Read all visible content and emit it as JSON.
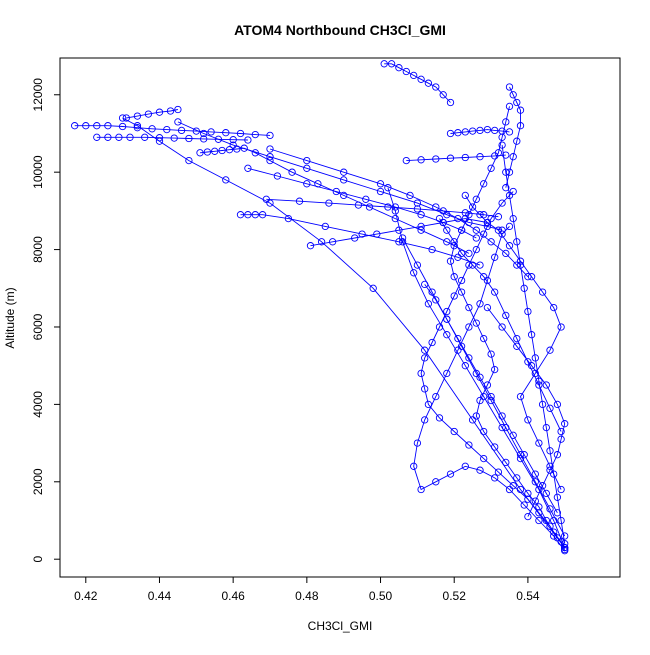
{
  "chart_data": {
    "type": "line",
    "title": "ATOM4 Northbound CH3Cl_GMI",
    "xlabel": "CH3Cl_GMI",
    "ylabel": "Altitude (m)",
    "xlim": [
      0.413,
      0.565
    ],
    "ylim": [
      -460,
      12950
    ],
    "x_ticks": [
      0.42,
      0.44,
      0.46,
      0.48,
      0.5,
      0.52,
      0.54
    ],
    "x_tick_labels": [
      "0.42",
      "0.44",
      "0.46",
      "0.48",
      "0.50",
      "0.52",
      "0.54"
    ],
    "y_ticks": [
      0,
      2000,
      4000,
      6000,
      8000,
      10000,
      12000
    ],
    "y_tick_labels": [
      "0",
      "2000",
      "4000",
      "6000",
      "8000",
      "10000",
      "12000"
    ],
    "marker": "open-circle",
    "line_style": "solid",
    "series_color": "#0000ff",
    "grid": false,
    "series": [
      {
        "x": [
          0.55,
          0.549,
          0.547,
          0.545,
          0.543,
          0.54,
          0.537,
          0.534,
          0.531,
          0.528,
          0.526,
          0.527,
          0.529,
          0.531,
          0.53,
          0.528,
          0.526,
          0.524,
          0.522,
          0.52,
          0.519,
          0.52,
          0.522,
          0.524,
          0.526,
          0.528,
          0.53,
          0.532,
          0.533,
          0.534,
          0.535
        ],
        "y": [
          250,
          450,
          700,
          1000,
          1350,
          1700,
          2100,
          2500,
          2900,
          3300,
          3700,
          4100,
          4500,
          4900,
          5300,
          5700,
          6100,
          6500,
          6900,
          7300,
          7700,
          8100,
          8500,
          8900,
          9300,
          9700,
          10100,
          10500,
          10900,
          11300,
          11700
        ]
      },
      {
        "x": [
          0.55,
          0.548,
          0.546,
          0.543,
          0.54,
          0.536,
          0.532,
          0.528,
          0.524,
          0.52,
          0.516,
          0.513,
          0.512,
          0.511,
          0.512,
          0.514,
          0.516,
          0.518,
          0.52,
          0.522,
          0.524,
          0.526,
          0.528,
          0.53,
          0.533,
          0.536
        ],
        "y": [
          300,
          550,
          850,
          1200,
          1550,
          1900,
          2250,
          2600,
          2950,
          3300,
          3650,
          4000,
          4400,
          4800,
          5200,
          5600,
          6000,
          6400,
          6800,
          7200,
          7600,
          8000,
          8400,
          8800,
          9200,
          9500
        ]
      },
      {
        "x": [
          0.55,
          0.547,
          0.543,
          0.539,
          0.535,
          0.531,
          0.527,
          0.523,
          0.519,
          0.515,
          0.511,
          0.509,
          0.51,
          0.512,
          0.515,
          0.518,
          0.521,
          0.524,
          0.527,
          0.529,
          0.531,
          0.533,
          0.535
        ],
        "y": [
          220,
          600,
          1000,
          1400,
          1800,
          2100,
          2300,
          2400,
          2200,
          2000,
          1800,
          2400,
          3000,
          3600,
          4200,
          4800,
          5400,
          6000,
          6600,
          7200,
          7800,
          8400,
          8600
        ]
      },
      {
        "x": [
          0.55,
          0.549,
          0.548,
          0.547,
          0.546,
          0.545,
          0.544,
          0.543,
          0.542,
          0.541,
          0.54,
          0.539,
          0.538,
          0.537,
          0.536,
          0.535,
          0.534,
          0.533
        ],
        "y": [
          400,
          1000,
          1600,
          2200,
          2800,
          3400,
          4000,
          4600,
          5200,
          5800,
          6400,
          7000,
          7600,
          8200,
          8800,
          9400,
          10000,
          10700
        ]
      },
      {
        "x": [
          0.549,
          0.546,
          0.543,
          0.54,
          0.538,
          0.542,
          0.546,
          0.549,
          0.547,
          0.544,
          0.541,
          0.538,
          0.535,
          0.532,
          0.529,
          0.527,
          0.525,
          0.523
        ],
        "y": [
          1800,
          2400,
          3000,
          3600,
          4200,
          4800,
          5400,
          6000,
          6500,
          6900,
          7300,
          7700,
          8100,
          8500,
          8700,
          8900,
          9100,
          9400
        ]
      },
      {
        "x": [
          0.55,
          0.547,
          0.543,
          0.538,
          0.533,
          0.528,
          0.523,
          0.518,
          0.513,
          0.509,
          0.506,
          0.504,
          0.502
        ],
        "y": [
          300,
          1000,
          1800,
          2600,
          3400,
          4200,
          5000,
          5800,
          6600,
          7400,
          8200,
          9000,
          9600
        ]
      },
      {
        "x": [
          0.548,
          0.545,
          0.542,
          0.539,
          0.536,
          0.533,
          0.53,
          0.527,
          0.524,
          0.521,
          0.518,
          0.515,
          0.512
        ],
        "y": [
          1200,
          1700,
          2200,
          2700,
          3200,
          3700,
          4200,
          4700,
          5200,
          5700,
          6200,
          6700,
          7100
        ]
      },
      {
        "x": [
          0.55,
          0.546,
          0.542,
          0.538,
          0.534,
          0.53,
          0.526,
          0.522,
          0.518,
          0.514,
          0.51,
          0.506
        ],
        "y": [
          600,
          1300,
          2000,
          2700,
          3400,
          4100,
          4800,
          5500,
          6200,
          6900,
          7600,
          8300
        ]
      },
      {
        "x": [
          0.549,
          0.546,
          0.543,
          0.54,
          0.537,
          0.534,
          0.531,
          0.528,
          0.525,
          0.522,
          0.52,
          0.518,
          0.516
        ],
        "y": [
          3300,
          3900,
          4500,
          5100,
          5700,
          6300,
          6900,
          7300,
          7600,
          7900,
          8200,
          8500,
          8800
        ]
      },
      {
        "x": [
          0.54,
          0.542,
          0.544,
          0.546,
          0.548,
          0.549,
          0.55,
          0.548,
          0.545,
          0.541,
          0.537,
          0.533,
          0.529
        ],
        "y": [
          1100,
          1500,
          1900,
          2300,
          2700,
          3100,
          3500,
          4000,
          4500,
          5000,
          5500,
          6000,
          6500
        ]
      },
      {
        "x": [
          0.55,
          0.538,
          0.525,
          0.512,
          0.498,
          0.484,
          0.47,
          0.458,
          0.448,
          0.44,
          0.434,
          0.43
        ],
        "y": [
          300,
          1800,
          3600,
          5400,
          7000,
          8200,
          9200,
          9800,
          10300,
          10800,
          11200,
          11400
        ]
      },
      {
        "x": [
          0.431,
          0.434,
          0.437,
          0.44,
          0.443,
          0.445
        ],
        "y": [
          11400,
          11450,
          11500,
          11550,
          11580,
          11620
        ]
      },
      {
        "x": [
          0.445,
          0.452,
          0.46,
          0.47,
          0.48,
          0.49,
          0.5,
          0.51,
          0.518,
          0.524,
          0.529,
          0.533
        ],
        "y": [
          11300,
          11000,
          10700,
          10400,
          10100,
          9800,
          9500,
          9200,
          8900,
          8700,
          8600,
          8500
        ]
      },
      {
        "x": [
          0.417,
          0.42,
          0.423,
          0.426,
          0.43,
          0.434,
          0.438,
          0.442,
          0.446,
          0.45,
          0.454,
          0.458,
          0.462,
          0.466,
          0.47
        ],
        "y": [
          11200,
          11200,
          11200,
          11200,
          11180,
          11150,
          11120,
          11100,
          11080,
          11060,
          11040,
          11020,
          11000,
          10970,
          10950
        ]
      },
      {
        "x": [
          0.47,
          0.48,
          0.49,
          0.5,
          0.508,
          0.515,
          0.521,
          0.526,
          0.53,
          0.534,
          0.537,
          0.54
        ],
        "y": [
          10600,
          10300,
          10000,
          9700,
          9400,
          9100,
          8800,
          8500,
          8200,
          7900,
          7600,
          7300
        ]
      },
      {
        "x": [
          0.423,
          0.426,
          0.429,
          0.432,
          0.436,
          0.44,
          0.444,
          0.448,
          0.452,
          0.456,
          0.46,
          0.464
        ],
        "y": [
          10900,
          10900,
          10900,
          10900,
          10900,
          10890,
          10880,
          10870,
          10860,
          10850,
          10840,
          10830
        ]
      },
      {
        "x": [
          0.464,
          0.472,
          0.48,
          0.488,
          0.496,
          0.504,
          0.511,
          0.517,
          0.522,
          0.526
        ],
        "y": [
          10100,
          9900,
          9700,
          9500,
          9300,
          9100,
          8900,
          8700,
          8500,
          8300
        ]
      },
      {
        "x": [
          0.451,
          0.453,
          0.455,
          0.457,
          0.459,
          0.461,
          0.463,
          0.466,
          0.47,
          0.476,
          0.483,
          0.49,
          0.497,
          0.504,
          0.511,
          0.518,
          0.524
        ],
        "y": [
          10500,
          10520,
          10540,
          10560,
          10580,
          10600,
          10620,
          10500,
          10300,
          10000,
          9700,
          9400,
          9100,
          8800,
          8500,
          8200,
          7900
        ]
      },
      {
        "x": [
          0.462,
          0.464,
          0.466,
          0.468,
          0.475,
          0.485,
          0.495,
          0.505,
          0.514,
          0.521,
          0.527
        ],
        "y": [
          8900,
          8900,
          8900,
          8900,
          8800,
          8600,
          8400,
          8200,
          8000,
          7800,
          7600
        ]
      },
      {
        "x": [
          0.469,
          0.478,
          0.486,
          0.494,
          0.502,
          0.51,
          0.517,
          0.523,
          0.528,
          0.532
        ],
        "y": [
          9300,
          9250,
          9200,
          9150,
          9100,
          9050,
          9000,
          8950,
          8900,
          8850
        ]
      },
      {
        "x": [
          0.501,
          0.503,
          0.505,
          0.507,
          0.509,
          0.511,
          0.513,
          0.515,
          0.517,
          0.519
        ],
        "y": [
          12800,
          12800,
          12700,
          12600,
          12500,
          12400,
          12300,
          12200,
          12000,
          11800
        ]
      },
      {
        "x": [
          0.519,
          0.521,
          0.523,
          0.525,
          0.527,
          0.529,
          0.531,
          0.533,
          0.535
        ],
        "y": [
          11000,
          11020,
          11040,
          11060,
          11080,
          11100,
          11080,
          11060,
          11040
        ]
      },
      {
        "x": [
          0.507,
          0.511,
          0.515,
          0.519,
          0.523,
          0.527,
          0.531,
          0.534
        ],
        "y": [
          10300,
          10320,
          10340,
          10360,
          10380,
          10400,
          10420,
          10440
        ]
      },
      {
        "x": [
          0.535,
          0.536,
          0.537,
          0.538,
          0.538,
          0.537,
          0.536,
          0.535,
          0.534
        ],
        "y": [
          12200,
          12000,
          11800,
          11600,
          11200,
          10800,
          10400,
          10000,
          9600
        ]
      },
      {
        "x": [
          0.481,
          0.487,
          0.493,
          0.499,
          0.505,
          0.511,
          0.517,
          0.523,
          0.529
        ],
        "y": [
          8100,
          8200,
          8300,
          8400,
          8500,
          8600,
          8700,
          8800,
          8700
        ]
      }
    ]
  }
}
